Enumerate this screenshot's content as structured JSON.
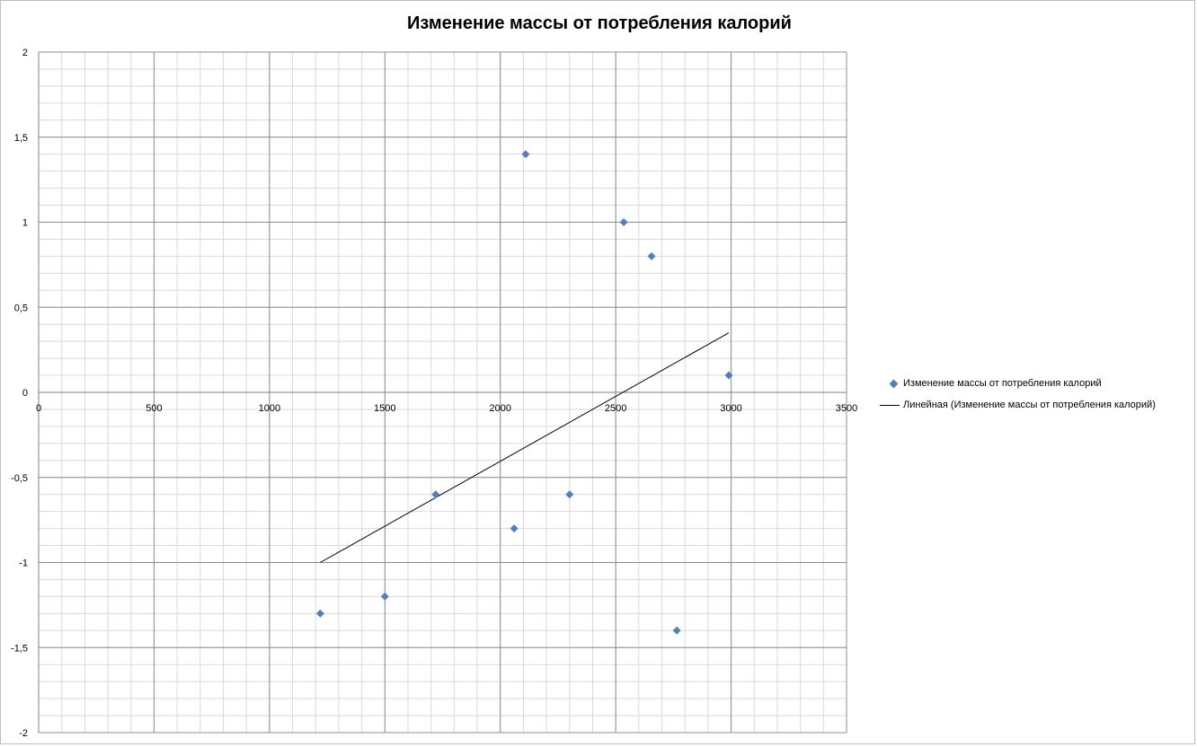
{
  "chart_data": {
    "type": "scatter",
    "title": "Изменение массы от потребления калорий",
    "xlim": [
      0,
      3500
    ],
    "ylim": [
      -2,
      2
    ],
    "x_ticks": [
      "0",
      "500",
      "1000",
      "1500",
      "2000",
      "2500",
      "3000",
      "3500"
    ],
    "y_ticks": [
      "2",
      "1,5",
      "1",
      "0,5",
      "0",
      "-0,5",
      "-1",
      "-1,5",
      "-2"
    ],
    "grid": true,
    "legend_position": "right",
    "series": [
      {
        "name": "Изменение  массы от потребления  калорий",
        "marker": "diamond",
        "color": "#4f81bd",
        "points": [
          {
            "x": 1220,
            "y": -1.3
          },
          {
            "x": 1500,
            "y": -1.2
          },
          {
            "x": 1720,
            "y": -0.6
          },
          {
            "x": 2060,
            "y": -0.8
          },
          {
            "x": 2110,
            "y": 1.4
          },
          {
            "x": 2300,
            "y": -0.6
          },
          {
            "x": 2535,
            "y": 1.0
          },
          {
            "x": 2655,
            "y": 0.8
          },
          {
            "x": 2765,
            "y": -1.4
          },
          {
            "x": 2990,
            "y": 0.1
          }
        ]
      }
    ],
    "trendline": {
      "name": "Линейная (Изменение  массы от потребления  калорий)",
      "type": "linear",
      "color": "#000000",
      "start": {
        "x": 1220,
        "y": -1.0
      },
      "end": {
        "x": 2990,
        "y": 0.35
      }
    }
  }
}
